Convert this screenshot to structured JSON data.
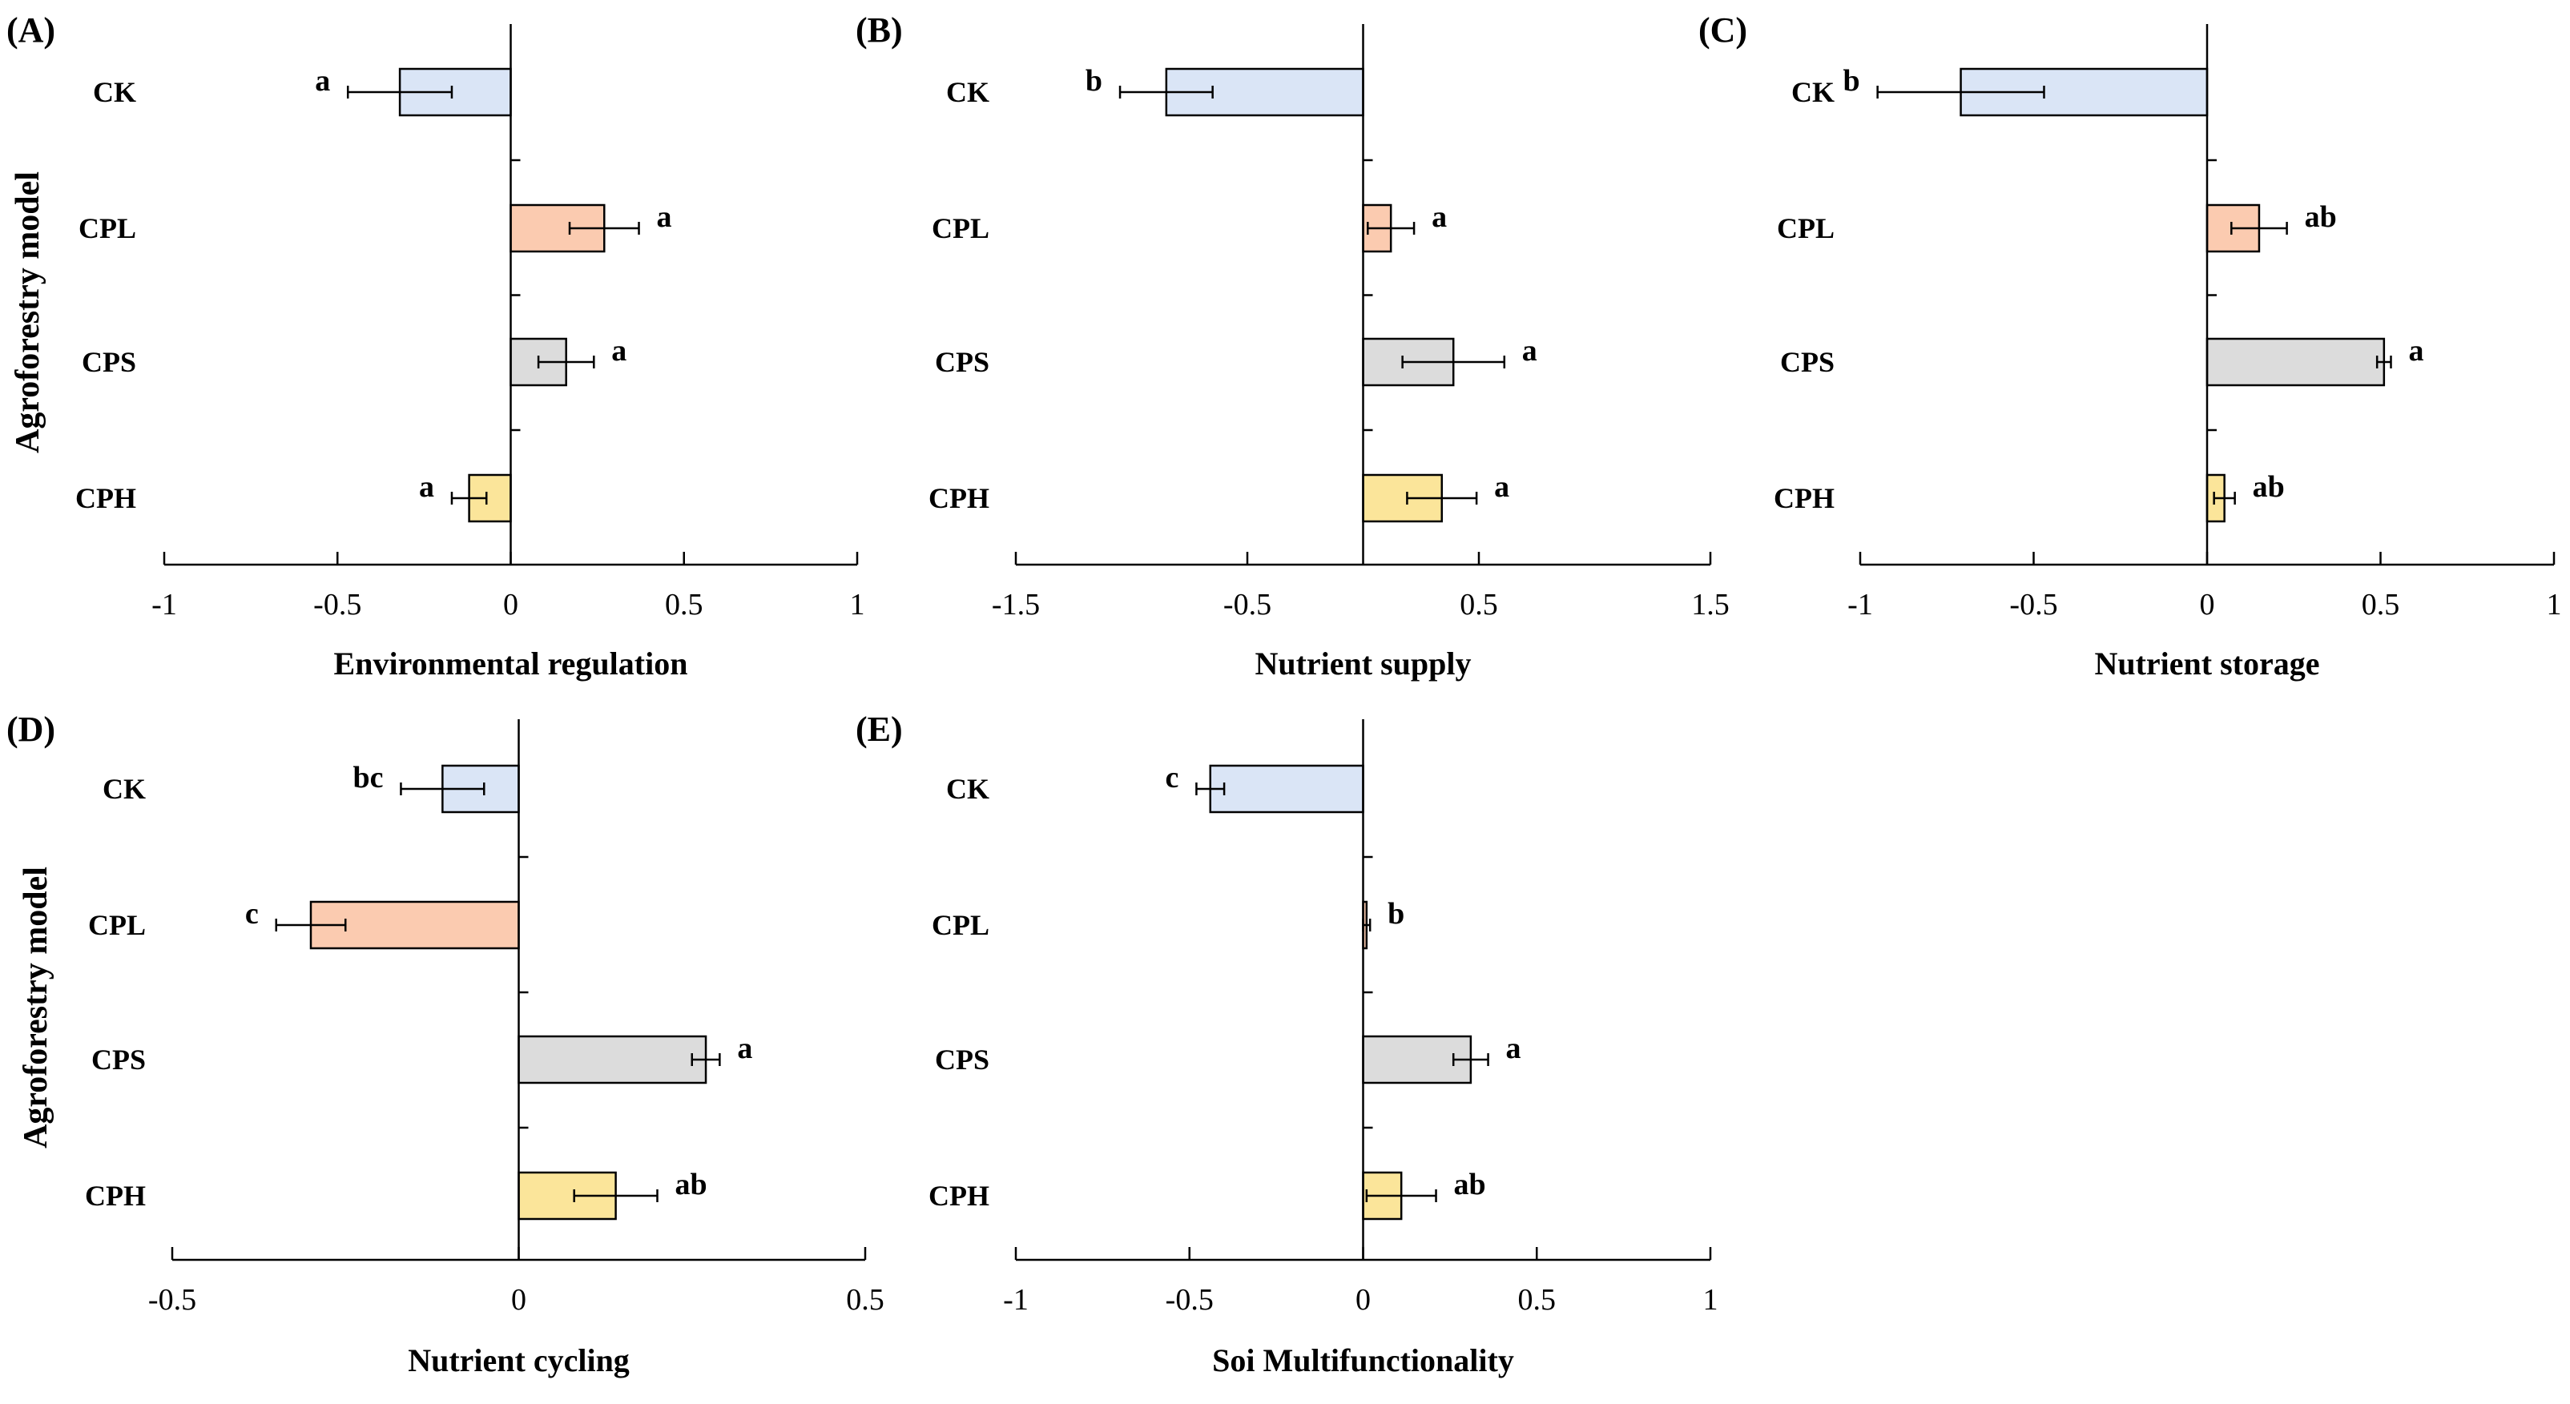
{
  "y_axis_label": "Agroforestry model",
  "colors": {
    "CK": "#dae5f6",
    "CPL": "#fbcbb0",
    "CPS": "#dcdcdc",
    "CPH": "#fbe59a",
    "stroke": "#000000"
  },
  "chart_data": [
    {
      "type": "bar",
      "orientation": "horizontal",
      "panel": "(A)",
      "xlabel": "Environmental regulation",
      "ylabel": "Agroforestry model",
      "categories": [
        "CK",
        "CPL",
        "CPS",
        "CPH"
      ],
      "values": [
        -0.32,
        0.27,
        0.16,
        -0.12
      ],
      "errors": [
        0.15,
        0.1,
        0.08,
        0.05
      ],
      "significance": [
        "a",
        "a",
        "a",
        "a"
      ],
      "xlim": [
        -1,
        1
      ],
      "ticks": [
        -1,
        -0.5,
        0,
        0.5,
        1
      ],
      "tick_labels": [
        "-1",
        "-0.5",
        "0",
        "0.5",
        "1"
      ]
    },
    {
      "type": "bar",
      "orientation": "horizontal",
      "panel": "(B)",
      "xlabel": "Nutrient supply",
      "ylabel": "",
      "categories": [
        "CK",
        "CPL",
        "CPS",
        "CPH"
      ],
      "values": [
        -0.85,
        0.12,
        0.39,
        0.34
      ],
      "errors": [
        0.2,
        0.1,
        0.22,
        0.15
      ],
      "significance": [
        "b",
        "a",
        "a",
        "a"
      ],
      "xlim": [
        -1.5,
        1.5
      ],
      "ticks": [
        -1.5,
        -0.5,
        0.5,
        1.5
      ],
      "tick_labels": [
        "-1.5",
        "-0.5",
        "0.5",
        "1.5"
      ]
    },
    {
      "type": "bar",
      "orientation": "horizontal",
      "panel": "(C)",
      "xlabel": "Nutrient storage",
      "ylabel": "",
      "categories": [
        "CK",
        "CPL",
        "CPS",
        "CPH"
      ],
      "values": [
        -0.71,
        0.15,
        0.51,
        0.05
      ],
      "errors": [
        0.24,
        0.08,
        0.02,
        0.03
      ],
      "significance": [
        "b",
        "ab",
        "a",
        "ab"
      ],
      "xlim": [
        -1,
        1
      ],
      "ticks": [
        -1,
        -0.5,
        0,
        0.5,
        1
      ],
      "tick_labels": [
        "-1",
        "-0.5",
        "0",
        "0.5",
        "1"
      ]
    },
    {
      "type": "bar",
      "orientation": "horizontal",
      "panel": "(D)",
      "xlabel": "Nutrient cycling",
      "ylabel": "Agroforestry model",
      "categories": [
        "CK",
        "CPL",
        "CPS",
        "CPH"
      ],
      "values": [
        -0.11,
        -0.3,
        0.27,
        0.14
      ],
      "errors": [
        0.06,
        0.05,
        0.02,
        0.06
      ],
      "significance": [
        "bc",
        "c",
        "a",
        "ab"
      ],
      "xlim": [
        -0.5,
        0.5
      ],
      "ticks": [
        -0.5,
        0,
        0.5
      ],
      "tick_labels": [
        "-0.5",
        "0",
        "0.5"
      ]
    },
    {
      "type": "bar",
      "orientation": "horizontal",
      "panel": "(E)",
      "xlabel": "Soi Multifunctionality",
      "ylabel": "",
      "categories": [
        "CK",
        "CPL",
        "CPS",
        "CPH"
      ],
      "values": [
        -0.44,
        0.01,
        0.31,
        0.11
      ],
      "errors": [
        0.04,
        0.01,
        0.05,
        0.1
      ],
      "significance": [
        "c",
        "b",
        "a",
        "ab"
      ],
      "xlim": [
        -1,
        1
      ],
      "ticks": [
        -1,
        -0.5,
        0,
        0.5,
        1
      ],
      "tick_labels": [
        "-1",
        "-0.5",
        "0",
        "0.5",
        "1"
      ]
    }
  ]
}
